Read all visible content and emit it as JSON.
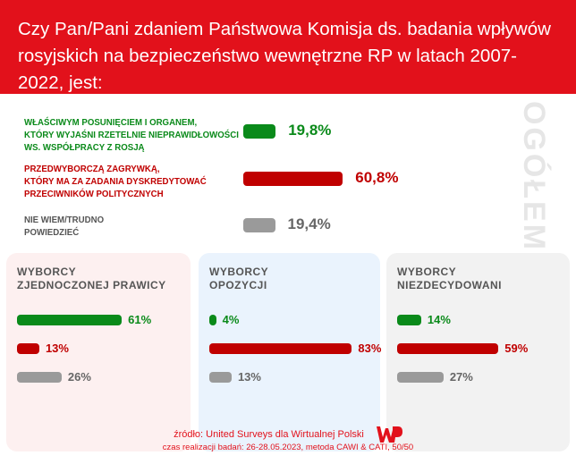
{
  "chart_data": {
    "type": "bar",
    "title": "Czy Pan/Pani zdaniem Państwowa Komisja ds. badania wpływów rosyjskich na bezpieczeństwo wewnętrzne RP w latach 2007-2022, jest:",
    "side_label": "OGÓŁEM",
    "categories": [
      "WŁAŚCIWYM POSUNIĘCIEM I ORGANEM, KTÓRY WYJAŚNI RZETELNIE NIEPRAWIDŁOWOŚCI WS. WSPÓŁPRACY Z ROSJĄ",
      "PRZEDWYBORCZĄ ZAGRYWKĄ, KTÓRY MA ZA ZADANIA DYSKREDYTOWAĆ PRZECIWNIKÓW POLITYCZNYCH",
      "NIE WIEM/TRUDNO POWIEDZIEĆ"
    ],
    "category_lines": [
      [
        "WŁAŚCIWYM POSUNIĘCIEM I ORGANEM,",
        "KTÓRY WYJAŚNI RZETELNIE NIEPRAWIDŁOWOŚCI",
        "WS. WSPÓŁPRACY Z ROSJĄ"
      ],
      [
        "PRZEDWYBORCZĄ ZAGRYWKĄ,",
        "KTÓRY MA ZA ZADANIA DYSKREDYTOWAĆ",
        "PRZECIWNIKÓW POLITYCZNYCH"
      ],
      [
        "NIE WIEM/TRUDNO",
        "POWIEDZIEĆ"
      ]
    ],
    "colors": [
      "#0a8a1a",
      "#c00000",
      "#9a9a9a"
    ],
    "overall": {
      "values": [
        19.8,
        60.8,
        19.4
      ],
      "labels": [
        "19,8%",
        "60,8%",
        "19,4%"
      ]
    },
    "groups": [
      {
        "name_lines": [
          "WYBORCY",
          "ZJEDNOCZONEJ PRAWICY"
        ],
        "values": [
          61,
          13,
          26
        ],
        "labels": [
          "61%",
          "13%",
          "26%"
        ],
        "bg": "#fdf0f0"
      },
      {
        "name_lines": [
          "WYBORCY",
          "OPOZYCJI"
        ],
        "values": [
          4,
          83,
          13
        ],
        "labels": [
          "4%",
          "83%",
          "13%"
        ],
        "bg": "#eaf3fd"
      },
      {
        "name_lines": [
          "WYBORCY",
          "NIEZDECYDOWANI"
        ],
        "values": [
          14,
          59,
          27
        ],
        "labels": [
          "14%",
          "59%",
          "27%"
        ],
        "bg": "#f2f2f2"
      }
    ]
  },
  "footer": {
    "source": "źródło: United Surveys dla Wirtualnej Polski",
    "details": "czas realizacji badań: 26-28.05.2023, metoda CAWI & CATI, 50/50",
    "logo": "WP"
  }
}
